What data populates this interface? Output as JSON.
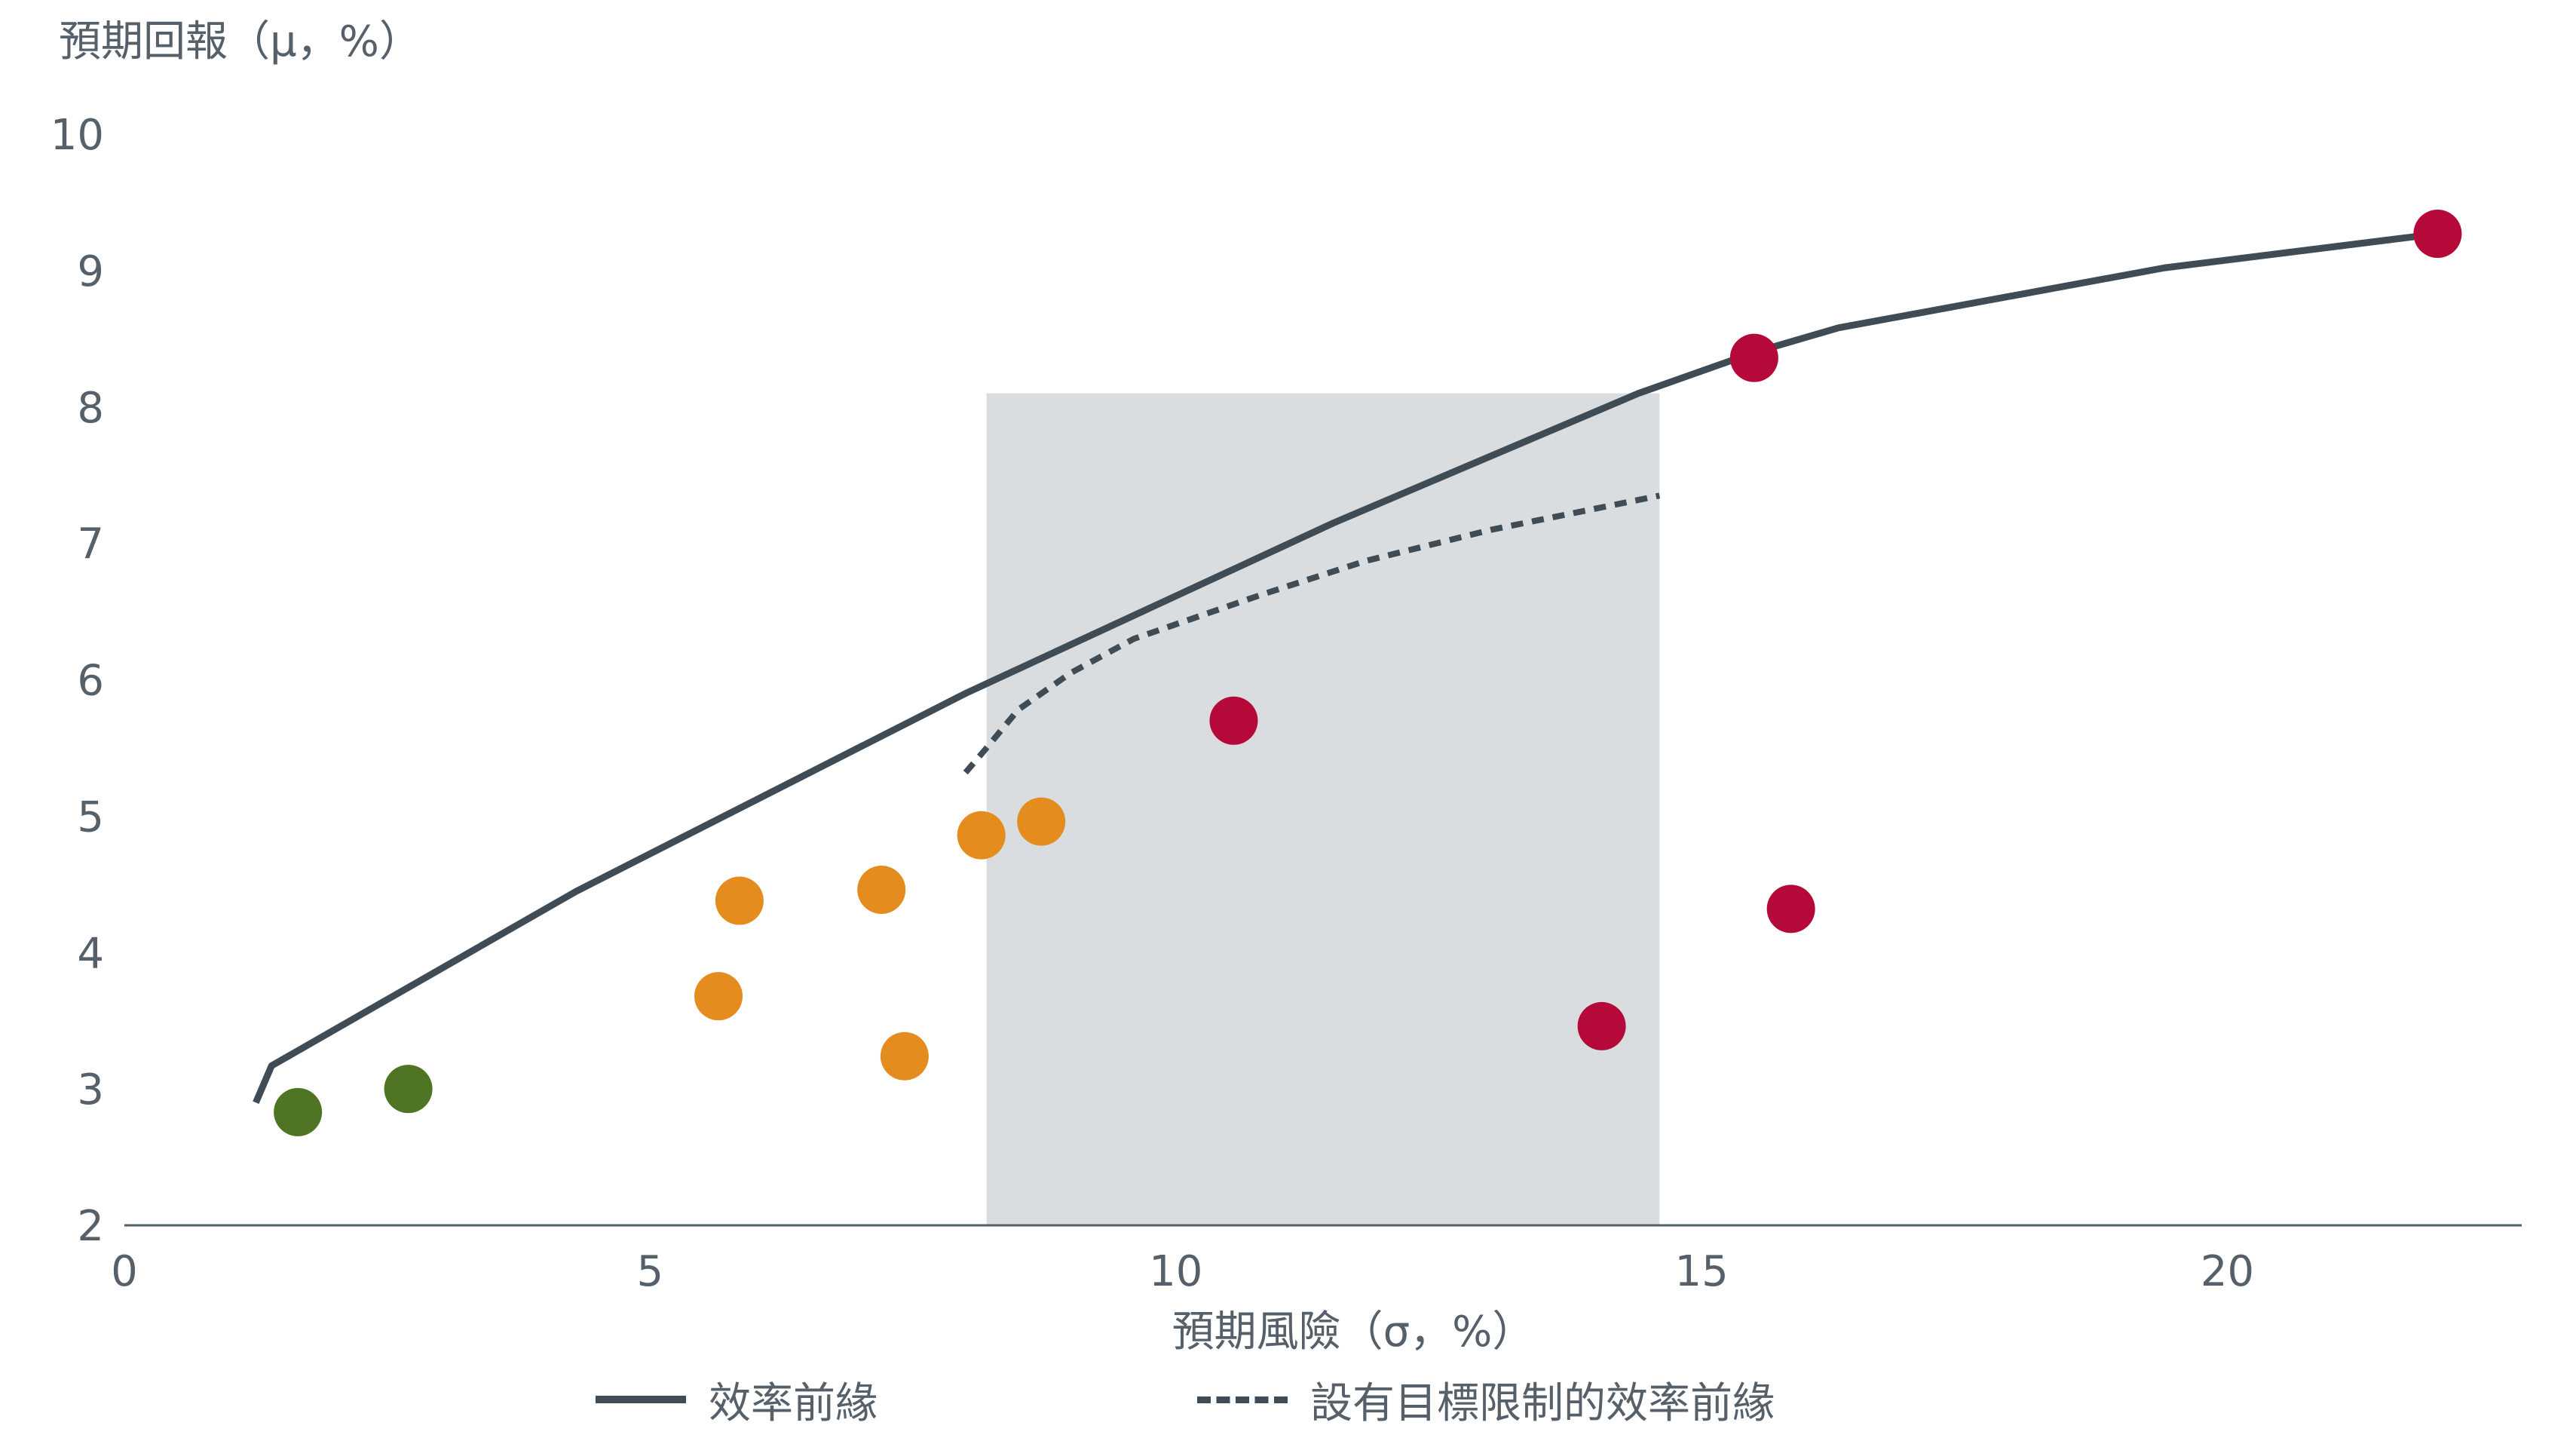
{
  "chart_data": {
    "type": "scatter",
    "ylabel": "預期回報（μ，%）",
    "xlabel": "預期風險（σ，%）",
    "xlim": [
      0,
      22.8
    ],
    "ylim": [
      2,
      10
    ],
    "x_ticks": [
      0,
      5,
      10,
      15,
      20
    ],
    "y_ticks": [
      2,
      3,
      4,
      5,
      6,
      7,
      8,
      9,
      10
    ],
    "x_tick_labels": [
      "0",
      "5",
      "10",
      "15",
      "20"
    ],
    "y_tick_labels": [
      "2",
      "3",
      "4",
      "5",
      "6",
      "7",
      "8",
      "9",
      "10"
    ],
    "grid": false,
    "legend_position": "bottom",
    "shaded_region": {
      "x_range": [
        8.2,
        14.6
      ],
      "color": "#d9dde0"
    },
    "series": [
      {
        "name": "效率前緣",
        "kind": "line",
        "style": "solid",
        "color": "#3f4b55",
        "x": [
          1.25,
          1.4,
          4.3,
          8.0,
          11.5,
          14.4,
          15.5,
          16.3,
          19.4,
          22.0
        ],
        "y": [
          2.9,
          3.17,
          4.45,
          5.9,
          7.15,
          8.1,
          8.4,
          8.58,
          9.02,
          9.27
        ]
      },
      {
        "name": "設有目標限制的效率前緣",
        "kind": "line",
        "style": "dashed",
        "color": "#3f4b55",
        "x": [
          8.0,
          8.2,
          8.5,
          9.0,
          9.6,
          10.8,
          11.8,
          13.0,
          14.6
        ],
        "y": [
          5.32,
          5.5,
          5.78,
          6.05,
          6.3,
          6.62,
          6.87,
          7.1,
          7.35
        ]
      },
      {
        "kind": "scatter",
        "color": "#4e7424",
        "x": [
          1.65,
          2.7
        ],
        "y": [
          2.83,
          3.0
        ]
      },
      {
        "kind": "scatter",
        "color": "#e58c1e",
        "x": [
          5.85,
          7.2,
          5.65,
          7.42,
          8.15,
          8.72
        ],
        "y": [
          4.38,
          4.46,
          3.68,
          3.24,
          4.86,
          4.96
        ]
      },
      {
        "kind": "scatter",
        "color": "#b5093a",
        "x": [
          10.55,
          14.05,
          15.5,
          15.85,
          22.0
        ],
        "y": [
          5.7,
          3.46,
          8.36,
          4.32,
          9.27
        ]
      }
    ]
  }
}
